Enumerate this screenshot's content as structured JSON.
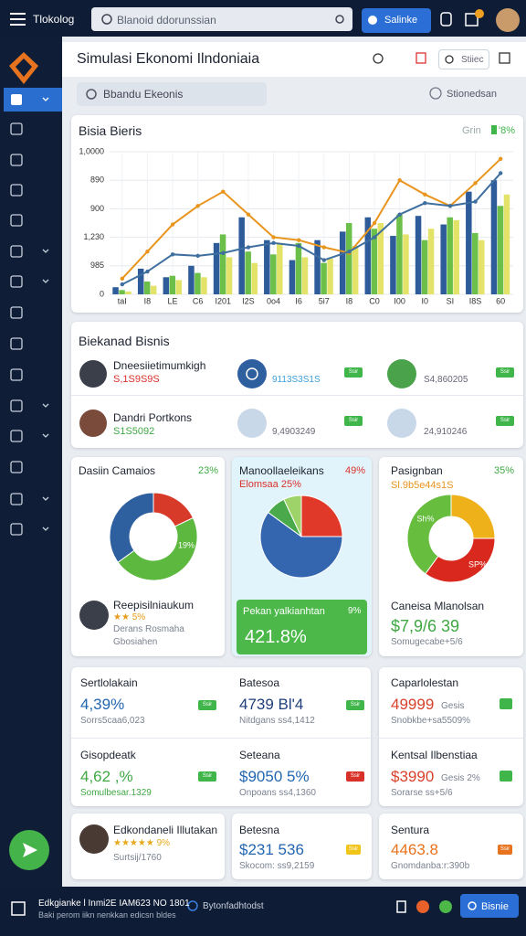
{
  "top_bar": {
    "brand": "Tlokolog",
    "search_placeholder": "Blanoid ddorunssian",
    "button": "Salinke"
  },
  "header": {
    "title": "Simulasi Ekonomi Ilndoniaia",
    "search": "Stiiec"
  },
  "filter": {
    "search_placeholder": "Bbandu Ekeonis",
    "dropdown": "Stionedsan"
  },
  "chart_data": {
    "type": "bar",
    "title": "Bisia Bieris",
    "legend_text": "Grin",
    "legend_badge": "'8%",
    "categories": [
      "taI",
      "I8",
      "LE",
      "C6",
      "I201",
      "I2S",
      "0o4",
      "I6",
      "5i7",
      "I8",
      "C0",
      "I00",
      "I0",
      "SI",
      "I8S",
      "60"
    ],
    "series": [
      {
        "type": "bar",
        "color": "#2e5c9a",
        "values": [
          50,
          180,
          120,
          200,
          360,
          540,
          380,
          240,
          380,
          440,
          540,
          410,
          550,
          490,
          720,
          800
        ]
      },
      {
        "type": "bar",
        "color": "#6cc04a",
        "values": [
          30,
          90,
          130,
          150,
          420,
          300,
          280,
          360,
          220,
          500,
          460,
          560,
          380,
          540,
          430,
          620
        ]
      },
      {
        "type": "bar",
        "color": "#e3e36a",
        "values": [
          20,
          60,
          100,
          120,
          260,
          220,
          360,
          260,
          250,
          340,
          500,
          420,
          460,
          520,
          380,
          700
        ]
      },
      {
        "type": "line",
        "color": "#e8951e",
        "values": [
          110,
          300,
          490,
          620,
          720,
          560,
          400,
          380,
          330,
          290,
          500,
          800,
          700,
          620,
          780,
          950
        ]
      },
      {
        "type": "line",
        "color": "#3f6f9f",
        "values": [
          70,
          160,
          280,
          270,
          290,
          330,
          360,
          340,
          240,
          300,
          400,
          560,
          640,
          620,
          650,
          850
        ]
      }
    ],
    "ylim": [
      0,
      1000
    ],
    "yticks": [
      0,
      {
        "value": 200,
        "label": "985"
      },
      {
        "value": 400,
        "label": "1,230"
      },
      {
        "value": 600,
        "label": "900"
      },
      {
        "value": 800,
        "label": "890"
      },
      {
        "value": 1000,
        "label": "1,0000"
      }
    ],
    "grid": true
  },
  "business": {
    "title": "Biekanad Bisnis",
    "rows": [
      {
        "name": "Dneesiietimumkigh",
        "value": "S,1S9S9S",
        "metric_1": "9113S3S1S",
        "badge_1": "Ssir",
        "metric_2": "S4,860205",
        "badge_2": "Ssir"
      },
      {
        "name": "Dandri Portkons",
        "value": "S1S5092",
        "metric_1": "9,4903249",
        "badge_1": "Ssir",
        "metric_2": "24,910246",
        "badge_2": "Ssir"
      }
    ]
  },
  "donuts": [
    {
      "title": "Dasiin Camaios",
      "percent": "23%",
      "slice_labels": [
        "19%"
      ],
      "segments": [
        {
          "value": 18,
          "color": "#d83a2a"
        },
        {
          "value": 47,
          "color": "#5cb83f"
        },
        {
          "value": 35,
          "color": "#2e5f9e"
        }
      ],
      "person": {
        "name": "Reepisilniaukum",
        "rating": "★★ 5%",
        "line_1": "Derans Rosmaha",
        "line_2": "Gbosiahen"
      }
    },
    {
      "title": "Manoollaeleikans",
      "percent": "49%",
      "subtitle": "Elomsaa 25%",
      "segments": [
        {
          "value": 25,
          "color": "#e0392a"
        },
        {
          "value": 60,
          "color": "#3466b0"
        },
        {
          "value": 8,
          "color": "#4aa94a"
        },
        {
          "value": 7,
          "color": "#9ed36a"
        }
      ],
      "highlight": {
        "label": "Pekan yalkianhtan",
        "percent": "9%",
        "value": "421.8%"
      }
    },
    {
      "title": "Pasignban",
      "percent": "35%",
      "subtitle": "Sl.9b5e44s1S",
      "slice_labels": [
        "Sh%",
        "SP%"
      ],
      "segments": [
        {
          "value": 25,
          "color": "#efb11a"
        },
        {
          "value": 35,
          "color": "#d9291f"
        },
        {
          "value": 40,
          "color": "#67bd3e"
        }
      ],
      "summary": {
        "label": "Caneisa Mlanolsan",
        "value": "$7,9/6 39",
        "note": "Somugecabe+5/6"
      }
    }
  ],
  "stats": {
    "rows": [
      [
        {
          "label": "Sertlolakain",
          "value": "4,39%",
          "badge": "Ssir",
          "note": "Sorrs5caa6,023"
        },
        {
          "label": "Batesoa",
          "value": "4739 Bl'4",
          "badge": "Ssir",
          "note": "Nitdgans ss4,1412"
        },
        {
          "label": "Caparlolestan",
          "value": "49999",
          "unit": "Gesis",
          "note": "Snobkbe+sa5509%"
        }
      ],
      [
        {
          "label": "Gisopdeatk",
          "value": "4,62 ,%",
          "badge": "Ssir",
          "note": "Somulbesar.1329"
        },
        {
          "label": "Seteana",
          "value": "$9050 5%",
          "badge": "Ssir",
          "note": "Onpoans ss4,1360"
        },
        {
          "label": "Kentsal Ilbenstiaa",
          "value": "$3990",
          "unit": "Gesis 2%",
          "note": "Sorarse ss+5/6"
        }
      ]
    ],
    "featured": [
      {
        "name": "Edkondaneli Illutakan",
        "rating": "★★★★★ 9%",
        "note": "Surtsij/1760"
      },
      {
        "label": "Betesna",
        "value": "$231 536",
        "badge": "Ssir",
        "note": "Skocom: ss9,2159"
      },
      {
        "label": "Sentura",
        "value": "4463.8",
        "badge": "Ssir",
        "note": "Gnomdanba:r:390b"
      }
    ]
  },
  "footer": {
    "title": "Edkgianke l Inmi2E IAM623 NO 1801",
    "subtitle": "Baki perom iikn nenkkan edicsn bldes",
    "link": "Bytonfadhtodst",
    "button": "Bisnie"
  }
}
